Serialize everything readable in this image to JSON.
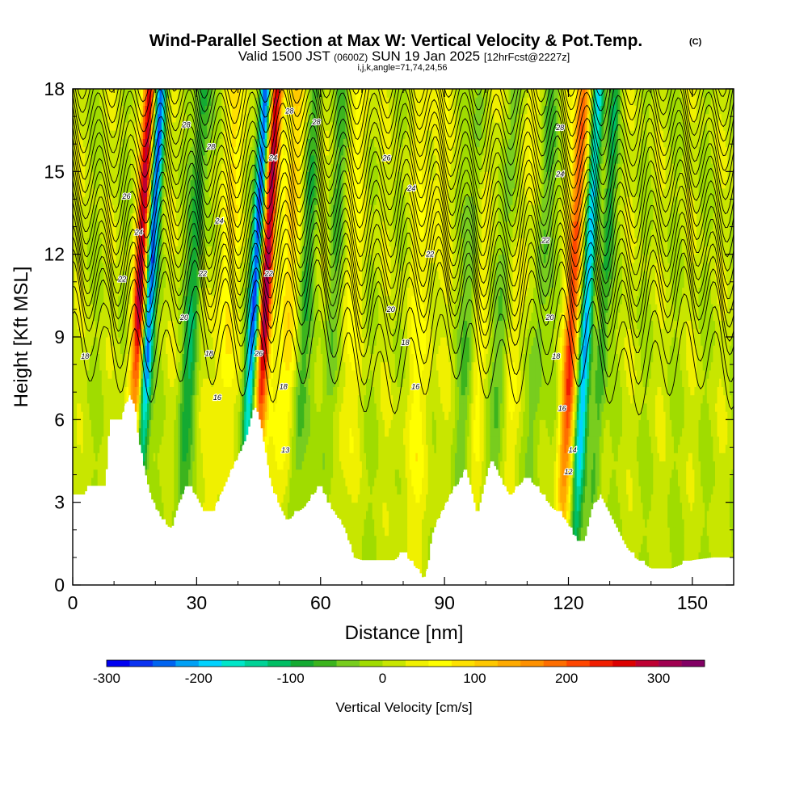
{
  "header": {
    "title": "Wind-Parallel Section at Max W: Vertical Velocity & Pot.Temp.",
    "copyright": "(C)",
    "valid_prefix": "Valid 1500 JST",
    "valid_utc": "(0600Z)",
    "valid_date": "SUN 19 Jan 2025",
    "forecast_info": "[12hrFcst@2227z]",
    "grid_info": "i,j,k,angle=71,74,24,56"
  },
  "colorbar": {
    "label": "Vertical Velocity [cm/s]",
    "min": -300,
    "max": 350,
    "step": 25,
    "tick_values": [
      -300,
      -200,
      -100,
      0,
      100,
      200,
      300
    ],
    "tick_labels": [
      "-300",
      "-200",
      "-100",
      "0",
      "100",
      "200",
      "300"
    ],
    "colors": [
      "#0000f0",
      "#0a32f0",
      "#0064f0",
      "#00a0f5",
      "#00d2ff",
      "#00e6c8",
      "#00d296",
      "#00be64",
      "#14aa32",
      "#3cb41e",
      "#78cd1e",
      "#a0dc00",
      "#c8e600",
      "#f0f000",
      "#ffff00",
      "#ffe100",
      "#ffc800",
      "#ffaa00",
      "#ff9100",
      "#ff6e00",
      "#ff4600",
      "#f01e00",
      "#dc0000",
      "#be0032",
      "#a00050",
      "#820064"
    ]
  },
  "chart_data": {
    "type": "heatmap",
    "title": "Wind-Parallel Section at Max W: Vertical Velocity & Pot.Temp.",
    "xlabel": "Distance [nm]",
    "ylabel": "Height [Kft MSL]",
    "xlim": [
      0,
      160
    ],
    "ylim": [
      0,
      18
    ],
    "xticks": [
      0,
      30,
      60,
      90,
      120,
      150
    ],
    "yticks": [
      0,
      3,
      6,
      9,
      12,
      15,
      18
    ],
    "terrain": {
      "x": [
        0,
        3,
        3.5,
        8,
        9,
        12,
        12.5,
        13,
        13.5,
        14,
        15,
        16,
        17,
        18,
        19,
        20,
        22,
        24,
        25,
        26,
        27,
        28,
        30,
        32,
        34,
        36,
        38,
        40,
        42,
        44,
        45,
        46,
        47,
        48,
        50,
        52,
        54,
        56,
        58,
        60,
        62,
        64,
        66,
        68,
        70,
        74,
        78,
        80,
        82,
        84,
        85,
        86,
        87,
        88,
        90,
        92,
        94,
        95,
        96,
        98,
        100,
        101,
        102,
        104,
        106,
        108,
        110,
        112,
        114,
        116,
        118,
        120,
        122,
        124,
        125,
        126,
        128,
        130,
        132,
        134,
        136,
        138,
        140,
        145,
        150,
        155,
        160
      ],
      "y": [
        3.2,
        3.2,
        3.6,
        3.6,
        6.0,
        6.0,
        6.5,
        6.5,
        6.8,
        6.8,
        6.5,
        5.2,
        4.5,
        3.8,
        3.2,
        2.8,
        2.3,
        2.0,
        2.6,
        3.0,
        3.4,
        3.6,
        3.2,
        2.6,
        2.6,
        3.3,
        4.0,
        4.6,
        5.3,
        6.5,
        6.2,
        5.4,
        4.6,
        3.6,
        2.9,
        2.3,
        2.6,
        2.8,
        3.2,
        3.6,
        2.9,
        2.5,
        2.0,
        1.0,
        0.9,
        0.9,
        0.9,
        1.2,
        0.8,
        0.5,
        0.2,
        0.6,
        1.8,
        2.2,
        2.8,
        3.4,
        3.8,
        4.2,
        3.8,
        2.5,
        3.8,
        4.4,
        4.4,
        3.7,
        3.2,
        3.6,
        3.9,
        3.6,
        3.2,
        2.8,
        2.6,
        2.2,
        1.6,
        1.6,
        2.3,
        2.9,
        3.2,
        2.6,
        2.0,
        1.4,
        1.0,
        0.8,
        0.6,
        0.6,
        0.9,
        1.0,
        1.0
      ]
    },
    "updrafts": [
      {
        "x": 16,
        "width": 1.6,
        "w": 280
      },
      {
        "x": 46.5,
        "width": 1.6,
        "w": 300
      },
      {
        "x": 37,
        "width": 3.0,
        "w": 60
      },
      {
        "x": 52,
        "width": 3.0,
        "w": 80
      },
      {
        "x": 67,
        "width": 3.0,
        "w": 40
      },
      {
        "x": 85,
        "width": 4.0,
        "w": 40
      },
      {
        "x": 99,
        "width": 2.5,
        "w": 40
      },
      {
        "x": 108,
        "width": 2.5,
        "w": 40
      },
      {
        "x": 121,
        "width": 1.8,
        "w": 200
      }
    ],
    "downdrafts": [
      {
        "x": 18.5,
        "width": 1.4,
        "w": -260
      },
      {
        "x": 44,
        "width": 1.4,
        "w": -290
      },
      {
        "x": 29,
        "width": 2.0,
        "w": -100
      },
      {
        "x": 56,
        "width": 2.0,
        "w": -80
      },
      {
        "x": 63,
        "width": 2.0,
        "w": -60
      },
      {
        "x": 96,
        "width": 2.0,
        "w": -60
      },
      {
        "x": 104,
        "width": 2.0,
        "w": -60
      },
      {
        "x": 113,
        "width": 2.0,
        "w": -60
      },
      {
        "x": 124.5,
        "width": 1.5,
        "w": -200
      },
      {
        "x": 128.5,
        "width": 1.5,
        "w": -90
      }
    ],
    "theta_levels": [
      8,
      9,
      10,
      10.5,
      11,
      11.5,
      12,
      12.5,
      13,
      13.5,
      14,
      14.5,
      15,
      15.5,
      16,
      16.5,
      17,
      17.5,
      18,
      18.5,
      19,
      19.5,
      20,
      20.5,
      21,
      21.5,
      22,
      22.5,
      23,
      23.5,
      24,
      24.5,
      25,
      25.5,
      26,
      26.5,
      27,
      27.5,
      28,
      28.5,
      29,
      29.5
    ],
    "contour_labels": [
      {
        "x": 3,
        "y": 8.3,
        "text": "18"
      },
      {
        "x": 12,
        "y": 11.1,
        "text": "22"
      },
      {
        "x": 13,
        "y": 14.1,
        "text": "26"
      },
      {
        "x": 16,
        "y": 12.8,
        "text": "24"
      },
      {
        "x": 27,
        "y": 9.7,
        "text": "20"
      },
      {
        "x": 31.5,
        "y": 11.3,
        "text": "22"
      },
      {
        "x": 33,
        "y": 8.4,
        "text": "18"
      },
      {
        "x": 35,
        "y": 6.8,
        "text": "16"
      },
      {
        "x": 35.5,
        "y": 13.2,
        "text": "24"
      },
      {
        "x": 33.5,
        "y": 15.9,
        "text": "28"
      },
      {
        "x": 27.5,
        "y": 16.7,
        "text": "28"
      },
      {
        "x": 45,
        "y": 8.4,
        "text": "26"
      },
      {
        "x": 47.5,
        "y": 11.3,
        "text": "22"
      },
      {
        "x": 48.5,
        "y": 15.5,
        "text": "24"
      },
      {
        "x": 51,
        "y": 7.2,
        "text": "18"
      },
      {
        "x": 51.5,
        "y": 4.9,
        "text": "13"
      },
      {
        "x": 52.5,
        "y": 17.2,
        "text": "28"
      },
      {
        "x": 59,
        "y": 16.8,
        "text": "28"
      },
      {
        "x": 76,
        "y": 15.5,
        "text": "26"
      },
      {
        "x": 82,
        "y": 14.4,
        "text": "24"
      },
      {
        "x": 86.5,
        "y": 12.0,
        "text": "22"
      },
      {
        "x": 77,
        "y": 10.0,
        "text": "20"
      },
      {
        "x": 80.5,
        "y": 8.8,
        "text": "18"
      },
      {
        "x": 83,
        "y": 7.2,
        "text": "16"
      },
      {
        "x": 118,
        "y": 16.6,
        "text": "28"
      },
      {
        "x": 118,
        "y": 14.9,
        "text": "24"
      },
      {
        "x": 114.5,
        "y": 12.5,
        "text": "22"
      },
      {
        "x": 115.5,
        "y": 9.7,
        "text": "20"
      },
      {
        "x": 117,
        "y": 8.3,
        "text": "18"
      },
      {
        "x": 118.5,
        "y": 6.4,
        "text": "16"
      },
      {
        "x": 121,
        "y": 4.9,
        "text": "14"
      },
      {
        "x": 120,
        "y": 4.1,
        "text": "12"
      }
    ]
  }
}
